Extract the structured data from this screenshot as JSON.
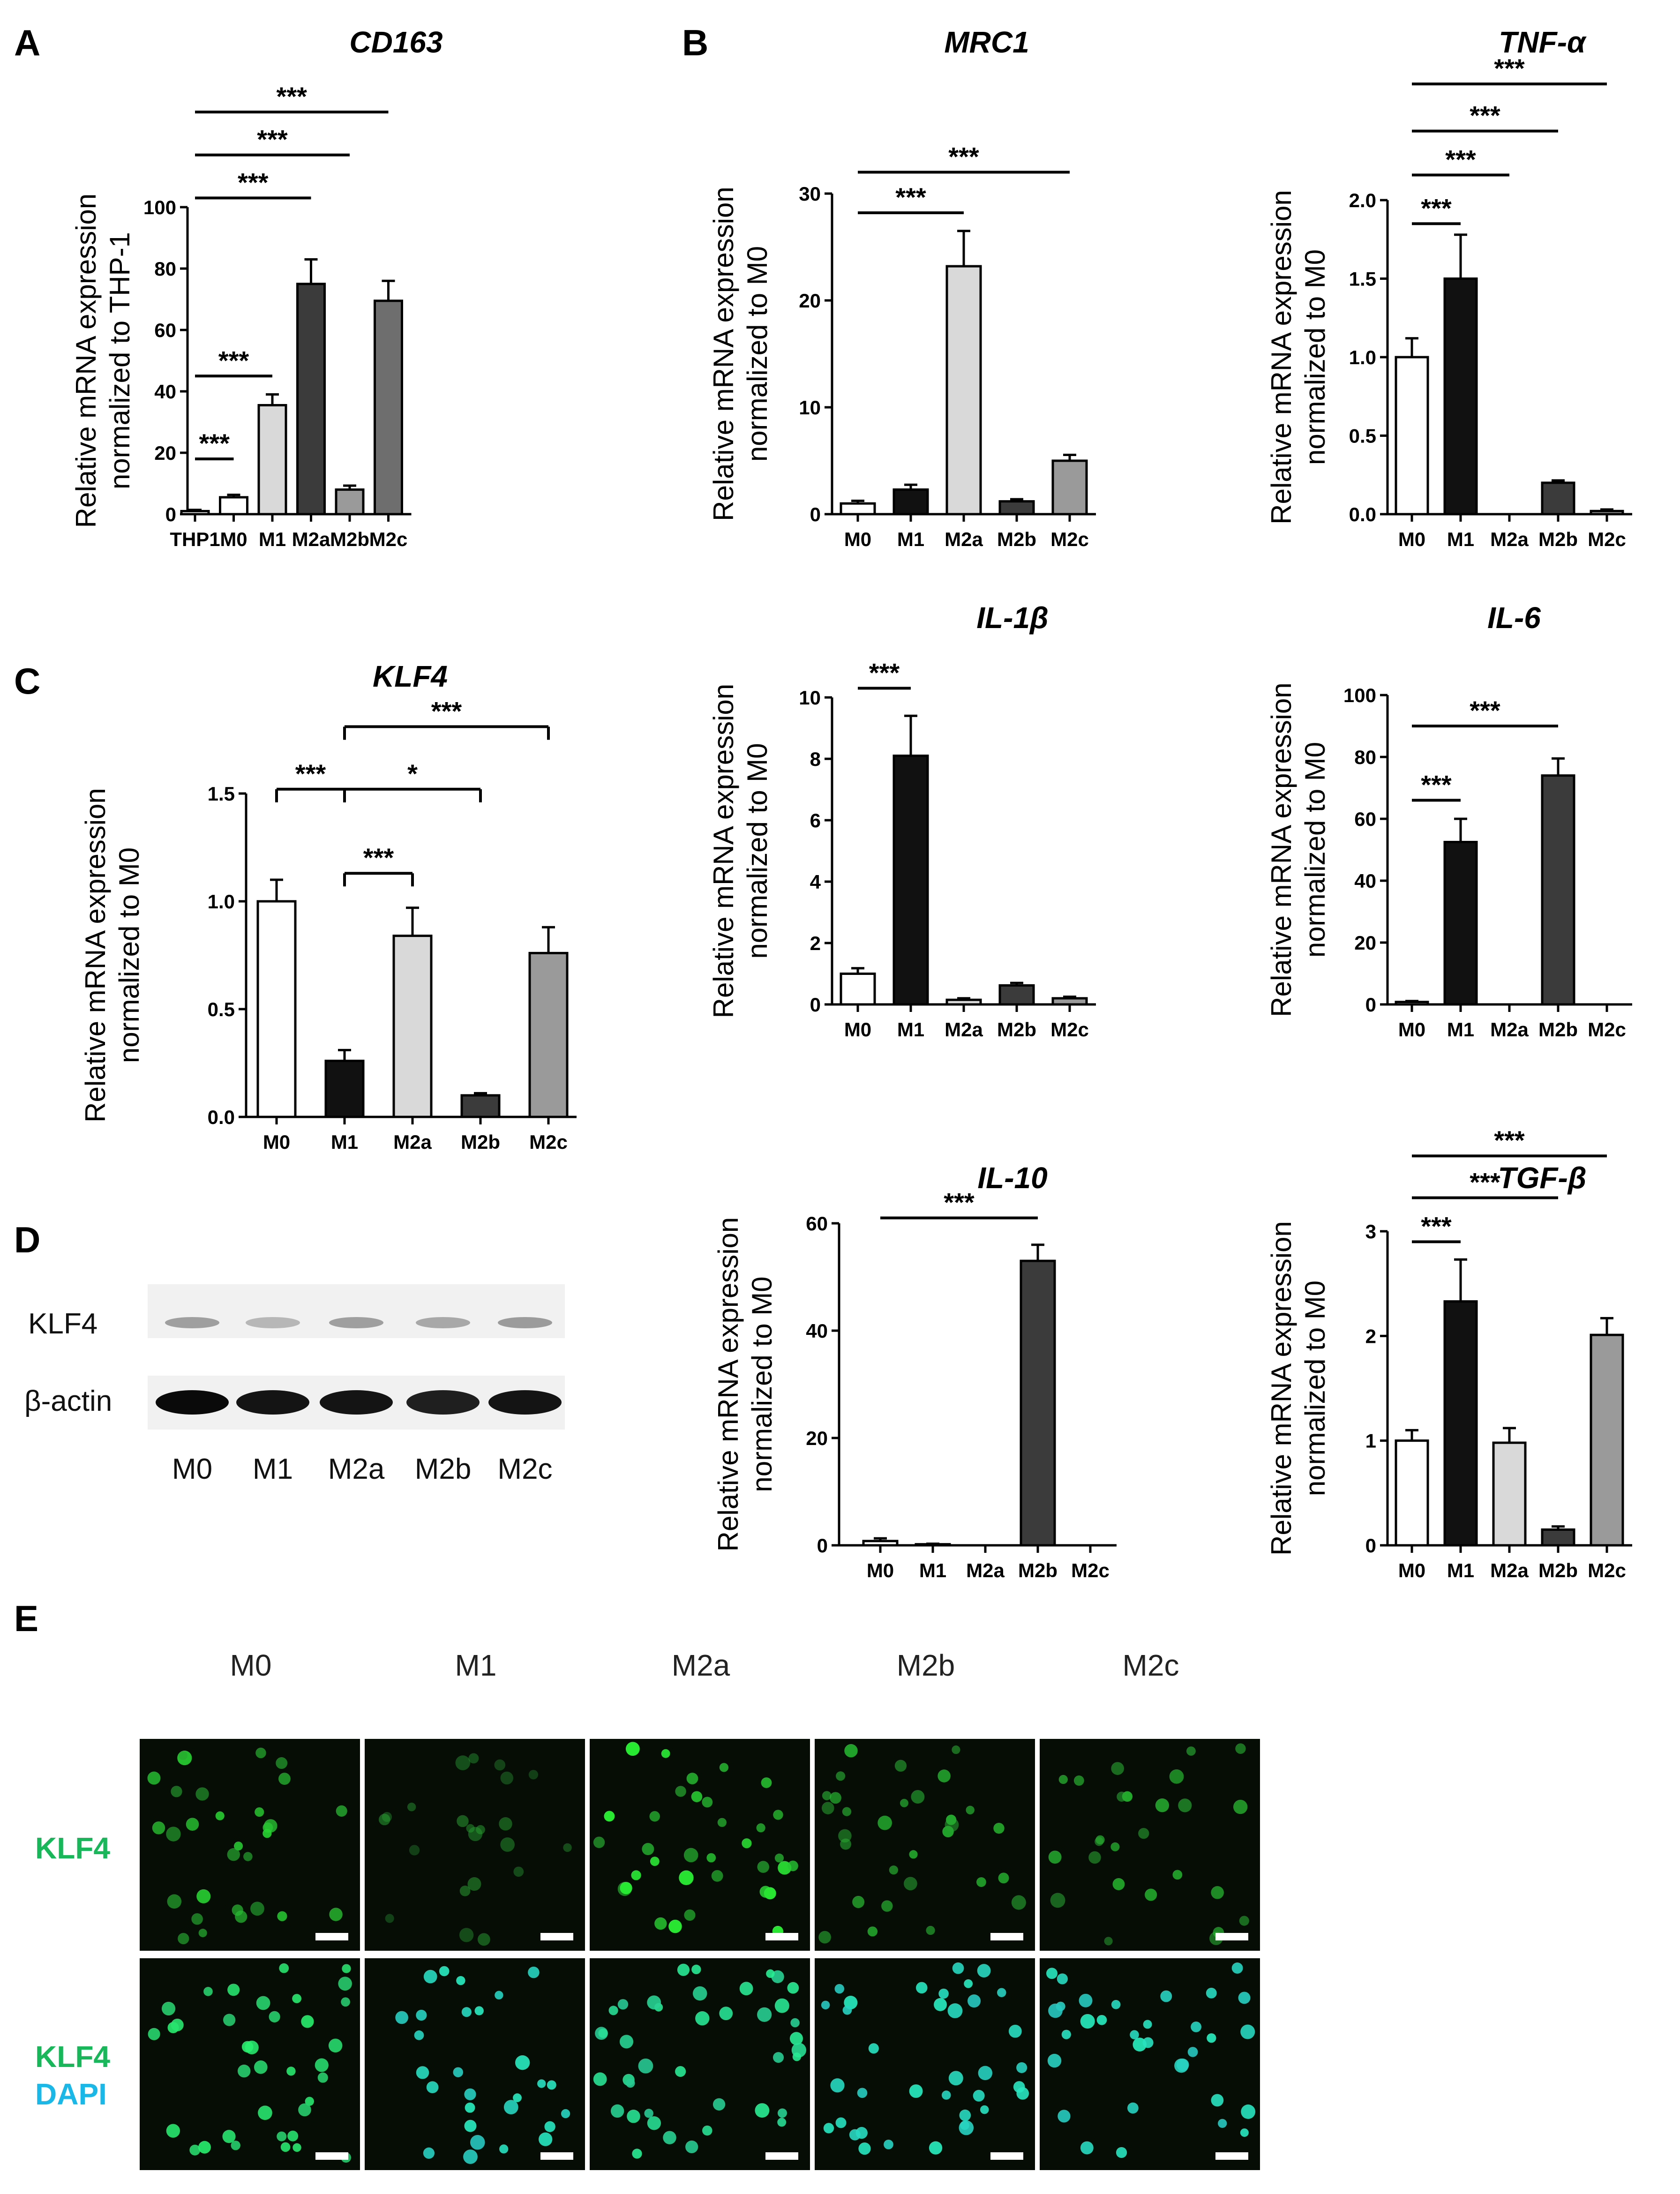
{
  "panels": {
    "A": "A",
    "B": "B",
    "C": "C",
    "D": "D",
    "E": "E"
  },
  "chart_data": [
    {
      "id": "cd163",
      "panel": "A",
      "type": "bar",
      "title": "CD163",
      "ylabel": "Relative mRNA expression\nnormalized to THP-1",
      "categories": [
        "THP1",
        "M0",
        "M1",
        "M2a",
        "M2b",
        "M2c"
      ],
      "values": [
        1,
        5.5,
        35.5,
        75,
        8,
        69.5
      ],
      "errors": [
        0.4,
        0.8,
        3.5,
        8,
        1.3,
        6.5
      ],
      "fills": [
        "#ffffff",
        "#ffffff",
        "#d9d9d9",
        "#3b3b3b",
        "#9a9a9a",
        "#6e6e6e"
      ],
      "ylim": [
        0,
        100
      ],
      "yticks": [
        0,
        20,
        40,
        60,
        80,
        100
      ],
      "significance": [
        {
          "from": 0,
          "to": 1,
          "label": "***",
          "y": 18
        },
        {
          "from": 0,
          "to": 2,
          "label": "***",
          "y": 45
        },
        {
          "from": 0,
          "to": 3,
          "label": "***",
          "y": 103
        },
        {
          "from": 0,
          "to": 4,
          "label": "***",
          "y": 117
        },
        {
          "from": 0,
          "to": 5,
          "label": "***",
          "y": 131
        }
      ]
    },
    {
      "id": "mrc1",
      "panel": "B",
      "type": "bar",
      "title": "MRC1",
      "ylabel": "Relative mRNA expression\nnormalized to M0",
      "categories": [
        "M0",
        "M1",
        "M2a",
        "M2b",
        "M2c"
      ],
      "values": [
        1,
        2.3,
        23.2,
        1.2,
        5
      ],
      "errors": [
        0.25,
        0.45,
        3.3,
        0.2,
        0.55
      ],
      "fills": [
        "#ffffff",
        "#111111",
        "#d9d9d9",
        "#3b3b3b",
        "#9a9a9a"
      ],
      "ylim": [
        0,
        30
      ],
      "yticks": [
        0,
        10,
        20,
        30
      ],
      "significance": [
        {
          "from": 0,
          "to": 2,
          "label": "***",
          "y": 28.2
        },
        {
          "from": 0,
          "to": 4,
          "label": "***",
          "y": 32
        }
      ]
    },
    {
      "id": "tnfa",
      "panel": "B",
      "type": "bar",
      "title": "TNF-α",
      "ylabel": "Relative mRNA expression\nnormalized to M0",
      "categories": [
        "M0",
        "M1",
        "M2a",
        "M2b",
        "M2c"
      ],
      "values": [
        1,
        1.5,
        0,
        0.2,
        0.02
      ],
      "errors": [
        0.12,
        0.28,
        0,
        0.015,
        0.01
      ],
      "fills": [
        "#ffffff",
        "#111111",
        "#d9d9d9",
        "#3b3b3b",
        "#9a9a9a"
      ],
      "ylim": [
        0,
        2.0
      ],
      "yticks": [
        0.0,
        0.5,
        1.0,
        1.5,
        2.0
      ],
      "significance": [
        {
          "from": 0,
          "to": 1,
          "label": "***",
          "y": 1.85
        },
        {
          "from": 0,
          "to": 2,
          "label": "***",
          "y": 2.16
        },
        {
          "from": 0,
          "to": 3,
          "label": "***",
          "y": 2.44
        },
        {
          "from": 0,
          "to": 4,
          "label": "***",
          "y": 2.74
        }
      ]
    },
    {
      "id": "il1b",
      "panel": "B",
      "type": "bar",
      "title": "IL-1β",
      "ylabel": "Relative mRNA expression\nnormalized to M0",
      "categories": [
        "M0",
        "M1",
        "M2a",
        "M2b",
        "M2c"
      ],
      "values": [
        1,
        8.1,
        0.15,
        0.62,
        0.2
      ],
      "errors": [
        0.18,
        1.3,
        0.05,
        0.08,
        0.05
      ],
      "fills": [
        "#ffffff",
        "#111111",
        "#d9d9d9",
        "#3b3b3b",
        "#9a9a9a"
      ],
      "ylim": [
        0,
        10
      ],
      "yticks": [
        0,
        2,
        4,
        6,
        8,
        10
      ],
      "significance": [
        {
          "from": 0,
          "to": 1,
          "label": "***",
          "y": 10.3
        }
      ]
    },
    {
      "id": "il6",
      "panel": "B",
      "type": "bar",
      "title": "IL-6",
      "ylabel": "Relative mRNA expression\nnormalized to M0",
      "categories": [
        "M0",
        "M1",
        "M2a",
        "M2b",
        "M2c"
      ],
      "values": [
        0.8,
        52.5,
        0,
        74,
        0
      ],
      "errors": [
        0.3,
        7.5,
        0,
        5.5,
        0
      ],
      "fills": [
        "#ffffff",
        "#111111",
        "#d9d9d9",
        "#3b3b3b",
        "#9a9a9a"
      ],
      "ylim": [
        0,
        100
      ],
      "yticks": [
        0,
        20,
        40,
        60,
        80,
        100
      ],
      "significance": [
        {
          "from": 0,
          "to": 1,
          "label": "***",
          "y": 66
        },
        {
          "from": 0,
          "to": 3,
          "label": "***",
          "y": 90
        }
      ]
    },
    {
      "id": "il10",
      "panel": "B",
      "type": "bar",
      "title": "IL-10",
      "ylabel": "Relative mRNA expression\nnormalized to M0",
      "categories": [
        "M0",
        "M1",
        "M2a",
        "M2b",
        "M2c"
      ],
      "values": [
        0.8,
        0.2,
        0,
        53,
        0
      ],
      "errors": [
        0.5,
        0.1,
        0,
        3,
        0
      ],
      "fills": [
        "#ffffff",
        "#111111",
        "#d9d9d9",
        "#3b3b3b",
        "#9a9a9a"
      ],
      "ylim": [
        0,
        60
      ],
      "yticks": [
        0,
        20,
        40,
        60
      ],
      "significance": [
        {
          "from": 0,
          "to": 3,
          "label": "***",
          "y": 61
        }
      ]
    },
    {
      "id": "tgfb",
      "panel": "B",
      "type": "bar",
      "title": "TGF-β",
      "ylabel": "Relative mRNA expression\nnormalized to M0",
      "categories": [
        "M0",
        "M1",
        "M2a",
        "M2b",
        "M2c"
      ],
      "values": [
        1,
        2.33,
        0.98,
        0.15,
        2.01
      ],
      "errors": [
        0.1,
        0.4,
        0.14,
        0.03,
        0.16
      ],
      "fills": [
        "#ffffff",
        "#111111",
        "#d9d9d9",
        "#3b3b3b",
        "#9a9a9a"
      ],
      "ylim": [
        0,
        3
      ],
      "yticks": [
        0,
        1,
        2,
        3
      ],
      "significance": [
        {
          "from": 0,
          "to": 1,
          "label": "***",
          "y": 2.9
        },
        {
          "from": 0,
          "to": 3,
          "label": "***",
          "y": 3.32
        },
        {
          "from": 0,
          "to": 4,
          "label": "***",
          "y": 3.72
        }
      ]
    },
    {
      "id": "klf4",
      "panel": "C",
      "type": "bar",
      "title": "KLF4",
      "ylabel": "Relative mRNA expression\nnormalized to M0",
      "categories": [
        "M0",
        "M1",
        "M2a",
        "M2b",
        "M2c"
      ],
      "values": [
        1,
        0.26,
        0.84,
        0.1,
        0.76
      ],
      "errors": [
        0.1,
        0.05,
        0.13,
        0.01,
        0.12
      ],
      "fills": [
        "#ffffff",
        "#111111",
        "#d9d9d9",
        "#3b3b3b",
        "#9a9a9a"
      ],
      "ylim": [
        0,
        1.5
      ],
      "yticks": [
        0.0,
        0.5,
        1.0,
        1.5
      ],
      "significance": [
        {
          "from": 0,
          "to": 1,
          "label": "***",
          "y": 1.52,
          "bracket": true
        },
        {
          "from": 1,
          "to": 2,
          "label": "***",
          "y": 1.13,
          "bracket": true
        },
        {
          "from": 1,
          "to": 3,
          "label": "*",
          "y": 1.52,
          "bracket": true
        },
        {
          "from": 1,
          "to": 4,
          "label": "***",
          "y": 1.81,
          "bracket": true
        }
      ]
    }
  ],
  "western_blot": {
    "rows": [
      "KLF4",
      "β-actin"
    ],
    "lanes": [
      "M0",
      "M1",
      "M2a",
      "M2b",
      "M2c"
    ],
    "klf4_intensity": [
      0.55,
      0.3,
      0.55,
      0.45,
      0.6
    ],
    "actin_intensity": [
      1.0,
      0.9,
      0.9,
      0.8,
      0.9
    ]
  },
  "microscopy": {
    "columns": [
      "M0",
      "M1",
      "M2a",
      "M2b",
      "M2c"
    ],
    "row1_label": "KLF4",
    "row2_label_line1": "KLF4",
    "row2_label_line2": "DAPI",
    "colors": {
      "green": "#18b85a",
      "cyan": "#1ab8e8"
    }
  }
}
